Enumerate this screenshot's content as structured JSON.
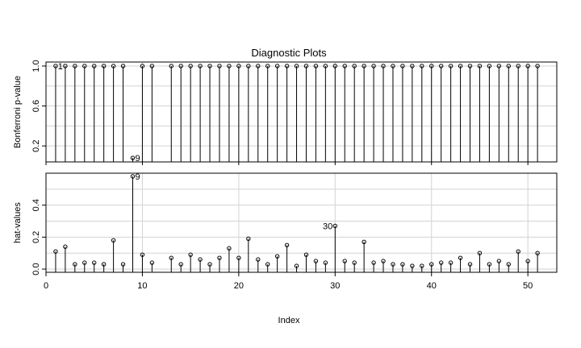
{
  "chart_data": {
    "type": "scatter",
    "title": "Diagnostic Plots",
    "xlabel": "Index",
    "xlim": [
      0,
      53
    ],
    "xticks": [
      0,
      10,
      20,
      30,
      40,
      50
    ],
    "grid": true,
    "panels": [
      {
        "name": "bonferroni",
        "ylabel": "Bonferroni p-value",
        "ylim": [
          0.04,
          1.04
        ],
        "yticks": [
          0.2,
          0.6,
          1.0
        ],
        "ytick_labels": [
          "0.2",
          "0.6",
          "1.0"
        ],
        "x": [
          1,
          2,
          3,
          4,
          5,
          6,
          7,
          8,
          9,
          10,
          11,
          12,
          13,
          14,
          15,
          16,
          17,
          18,
          19,
          20,
          21,
          22,
          23,
          24,
          25,
          26,
          27,
          28,
          29,
          30,
          31,
          32,
          33,
          34,
          35,
          36,
          37,
          38,
          39,
          40,
          41,
          42,
          43,
          44,
          45,
          46,
          47,
          48,
          49,
          50,
          51
        ],
        "values": [
          1,
          1,
          1,
          1,
          1,
          1,
          1,
          1,
          0.08,
          1,
          1,
          null,
          1,
          1,
          1,
          1,
          1,
          1,
          1,
          1,
          1,
          1,
          1,
          1,
          1,
          1,
          1,
          1,
          1,
          1,
          1,
          1,
          1,
          1,
          1,
          1,
          1,
          1,
          1,
          1,
          1,
          1,
          1,
          1,
          1,
          1,
          1,
          1,
          1,
          1,
          1
        ],
        "annotations": [
          {
            "x": 9,
            "y": 0.08,
            "label": "9",
            "side": "right"
          },
          {
            "x": 2,
            "y": 1.0,
            "label": "1",
            "side": "left"
          }
        ]
      },
      {
        "name": "hat-values",
        "ylabel": "hat-values",
        "ylim": [
          -0.02,
          0.6
        ],
        "yticks": [
          0.0,
          0.2,
          0.4
        ],
        "ytick_labels": [
          "0.0",
          "0.2",
          "0.4"
        ],
        "x": [
          1,
          2,
          3,
          4,
          5,
          6,
          7,
          8,
          9,
          10,
          11,
          12,
          13,
          14,
          15,
          16,
          17,
          18,
          19,
          20,
          21,
          22,
          23,
          24,
          25,
          26,
          27,
          28,
          29,
          30,
          31,
          32,
          33,
          34,
          35,
          36,
          37,
          38,
          39,
          40,
          41,
          42,
          43,
          44,
          45,
          46,
          47,
          48,
          49,
          50,
          51
        ],
        "values": [
          0.11,
          0.14,
          0.03,
          0.04,
          0.04,
          0.03,
          0.18,
          0.03,
          0.58,
          0.09,
          0.04,
          null,
          0.07,
          0.03,
          0.09,
          0.06,
          0.03,
          0.07,
          0.13,
          0.07,
          0.19,
          0.06,
          0.03,
          0.08,
          0.15,
          0.02,
          0.09,
          0.05,
          0.04,
          0.27,
          0.05,
          0.04,
          0.17,
          0.04,
          0.05,
          0.03,
          0.03,
          0.02,
          0.02,
          0.03,
          0.04,
          0.04,
          0.07,
          0.03,
          0.1,
          0.03,
          0.05,
          0.03,
          0.11,
          0.05,
          0.1
        ],
        "annotations": [
          {
            "x": 9,
            "y": 0.58,
            "label": "9",
            "side": "right"
          },
          {
            "x": 30,
            "y": 0.27,
            "label": "30",
            "side": "left"
          }
        ]
      }
    ]
  },
  "colors": {
    "grid": "#d3d3d3",
    "axis": "#000000",
    "point": "#000000",
    "background": "#ffffff"
  }
}
